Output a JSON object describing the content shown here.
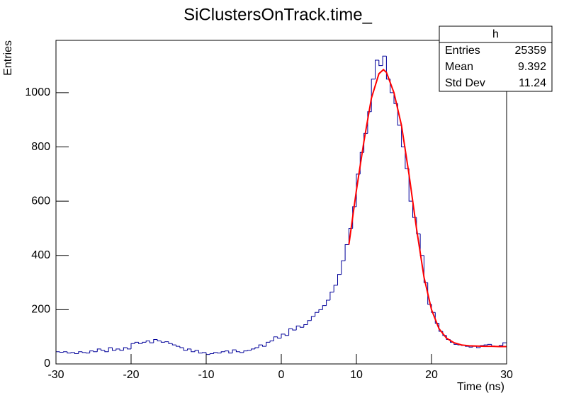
{
  "chart_data": {
    "type": "histogram",
    "title": "SiClustersOnTrack.time_",
    "x_label": "Time (ns)",
    "y_label": "Entries",
    "xlim": [
      -30,
      30
    ],
    "ylim": [
      0,
      1193
    ],
    "xticks": [
      -30,
      -20,
      -10,
      0,
      10,
      20,
      30
    ],
    "yticks": [
      0,
      200,
      400,
      600,
      800,
      1000
    ],
    "color": "#000099",
    "bins": [
      -30,
      -29.5,
      -29,
      -28.5,
      -28,
      -27.5,
      -27,
      -26.5,
      -26,
      -25.5,
      -25,
      -24.5,
      -24,
      -23.5,
      -23,
      -22.5,
      -22,
      -21.5,
      -21,
      -20.5,
      -20,
      -19.5,
      -19,
      -18.5,
      -18,
      -17.5,
      -17,
      -16.5,
      -16,
      -15.5,
      -15,
      -14.5,
      -14,
      -13.5,
      -13,
      -12.5,
      -12,
      -11.5,
      -11,
      -10.5,
      -10,
      -9.5,
      -9,
      -8.5,
      -8,
      -7.5,
      -7,
      -6.5,
      -6,
      -5.5,
      -5,
      -4.5,
      -4,
      -3.5,
      -3,
      -2.5,
      -2,
      -1.5,
      -1,
      -0.5,
      0,
      0.5,
      1,
      1.5,
      2,
      2.5,
      3,
      3.5,
      4,
      4.5,
      5,
      5.5,
      6,
      6.5,
      7,
      7.5,
      8,
      8.5,
      9,
      9.5,
      10,
      10.5,
      11,
      11.5,
      12,
      12.5,
      13,
      13.5,
      14,
      14.5,
      15,
      15.5,
      16,
      16.5,
      17,
      17.5,
      18,
      18.5,
      19,
      19.5,
      20,
      20.5,
      21,
      21.5,
      22,
      22.5,
      23,
      23.5,
      24,
      24.5,
      25,
      25.5,
      26,
      26.5,
      27,
      27.5,
      28,
      28.5,
      29,
      29.5,
      30
    ],
    "values": [
      45,
      43,
      45,
      40,
      42,
      38,
      45,
      42,
      40,
      48,
      45,
      55,
      50,
      45,
      60,
      50,
      55,
      50,
      60,
      55,
      75,
      80,
      75,
      80,
      85,
      78,
      90,
      85,
      80,
      82,
      75,
      70,
      65,
      60,
      50,
      55,
      45,
      50,
      40,
      42,
      35,
      38,
      42,
      40,
      45,
      48,
      40,
      52,
      45,
      42,
      48,
      50,
      55,
      60,
      70,
      65,
      80,
      85,
      100,
      95,
      110,
      105,
      130,
      125,
      140,
      135,
      145,
      160,
      175,
      190,
      200,
      215,
      235,
      265,
      290,
      330,
      380,
      440,
      500,
      580,
      700,
      780,
      850,
      930,
      1050,
      1120,
      1100,
      1135,
      1050,
      1000,
      960,
      880,
      800,
      720,
      600,
      540,
      480,
      400,
      300,
      220,
      190,
      150,
      120,
      105,
      90,
      80,
      72,
      70,
      68,
      65,
      62,
      65,
      60,
      68,
      70,
      72,
      66,
      65,
      68,
      78
    ],
    "fit": {
      "color": "#ff0000",
      "x": [
        9,
        10,
        11,
        12,
        13,
        13.6,
        14,
        15,
        16,
        17,
        18,
        19,
        20,
        21,
        22,
        23,
        24,
        25,
        26,
        27,
        28,
        29,
        30
      ],
      "y": [
        440,
        640,
        820,
        980,
        1070,
        1085,
        1075,
        1000,
        880,
        700,
        500,
        320,
        200,
        130,
        95,
        78,
        70,
        67,
        66,
        65,
        65,
        64,
        64
      ]
    },
    "stats": {
      "title": "h",
      "labels": [
        "Entries",
        "Mean",
        "Std Dev"
      ],
      "values": [
        25359,
        9.392,
        11.24
      ]
    }
  }
}
